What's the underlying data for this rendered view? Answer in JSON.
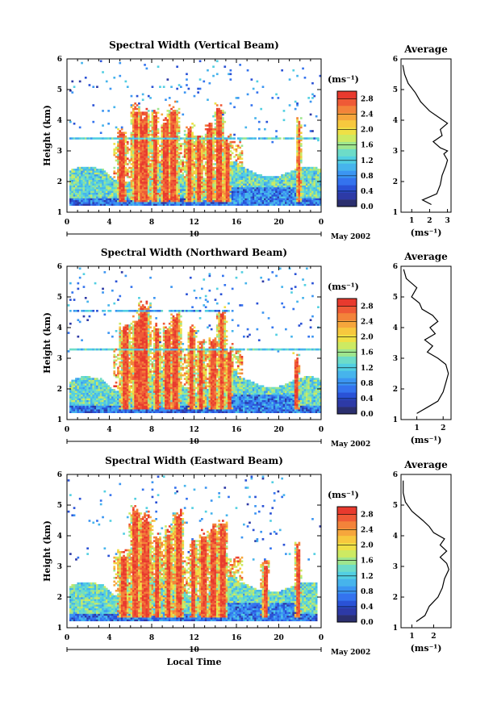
{
  "chart_data": [
    {
      "type": "heatmap",
      "title": "Spectral Width (Vertical Beam)",
      "ylabel": "Height (km)",
      "x_ticks": [
        "0",
        "4",
        "8",
        "12",
        "16",
        "20",
        "0"
      ],
      "y_ticks": [
        "1",
        "2",
        "3",
        "4",
        "5",
        "6"
      ],
      "xlim": [
        0,
        24
      ],
      "ylim": [
        1,
        6
      ],
      "date_day": "10",
      "date_label": "May 2002",
      "colorbar": {
        "unit": "(ms⁻¹)",
        "ticks": [
          "2.8",
          "2.4",
          "2.0",
          "1.6",
          "1.2",
          "0.8",
          "0.4",
          "0.0"
        ],
        "range": [
          0,
          3.0
        ]
      },
      "average": {
        "title": "Average",
        "xlabel": "(ms⁻¹)",
        "x_ticks": [
          "1",
          "2",
          "3"
        ],
        "xlim": [
          0.4,
          3.2
        ],
        "heights": [
          1.25,
          1.4,
          1.6,
          1.9,
          2.2,
          2.5,
          2.7,
          2.9,
          3.0,
          3.1,
          3.3,
          3.5,
          3.7,
          3.9,
          4.1,
          4.3,
          4.6,
          4.9,
          5.2,
          5.5,
          5.8
        ],
        "values": [
          2.1,
          1.6,
          2.4,
          2.6,
          2.7,
          2.9,
          3.0,
          2.8,
          3.0,
          2.6,
          2.2,
          2.7,
          2.6,
          3.0,
          2.5,
          2.0,
          1.5,
          1.2,
          0.8,
          0.6,
          0.5
        ]
      }
    },
    {
      "type": "heatmap",
      "title": "Spectral Width (Northward Beam)",
      "ylabel": "Height (km)",
      "x_ticks": [
        "0",
        "4",
        "8",
        "12",
        "16",
        "20",
        "0"
      ],
      "y_ticks": [
        "1",
        "2",
        "3",
        "4",
        "5",
        "6"
      ],
      "xlim": [
        0,
        24
      ],
      "ylim": [
        1,
        6
      ],
      "date_day": "10",
      "date_label": "May 2002",
      "colorbar": {
        "unit": "(ms⁻¹)",
        "ticks": [
          "2.8",
          "2.4",
          "2.0",
          "1.6",
          "1.2",
          "0.8",
          "0.4",
          "0.0"
        ],
        "range": [
          0,
          3.0
        ]
      },
      "average": {
        "title": "Average",
        "xlabel": "(ms⁻¹)",
        "x_ticks": [
          "1",
          "2"
        ],
        "xlim": [
          0.4,
          2.3
        ],
        "heights": [
          1.2,
          1.4,
          1.6,
          1.9,
          2.2,
          2.5,
          2.8,
          3.0,
          3.2,
          3.4,
          3.6,
          3.8,
          4.0,
          4.2,
          4.4,
          4.6,
          4.8,
          5.0,
          5.3,
          5.6,
          5.9
        ],
        "values": [
          1.0,
          1.4,
          1.8,
          2.0,
          2.1,
          2.2,
          2.1,
          1.8,
          1.4,
          1.6,
          1.3,
          1.7,
          1.5,
          1.8,
          1.6,
          1.2,
          1.1,
          0.8,
          1.0,
          0.6,
          0.5
        ]
      }
    },
    {
      "type": "heatmap",
      "title": "Spectral Width (Eastward Beam)",
      "ylabel": "Height (km)",
      "xlabel": "Local Time",
      "x_ticks": [
        "0",
        "4",
        "8",
        "12",
        "16",
        "20",
        "0"
      ],
      "y_ticks": [
        "1",
        "2",
        "3",
        "4",
        "5",
        "6"
      ],
      "xlim": [
        0,
        24
      ],
      "ylim": [
        1,
        6
      ],
      "date_day": "10",
      "date_label": "May 2002",
      "colorbar": {
        "unit": "(ms⁻¹)",
        "ticks": [
          "2.8",
          "2.4",
          "2.0",
          "1.6",
          "1.2",
          "0.8",
          "0.4",
          "0.0"
        ],
        "range": [
          0,
          3.0
        ]
      },
      "average": {
        "title": "Average",
        "xlabel": "(ms⁻¹)",
        "x_ticks": [
          "1",
          "2"
        ],
        "xlim": [
          0.5,
          2.8
        ],
        "heights": [
          1.2,
          1.4,
          1.7,
          2.0,
          2.3,
          2.6,
          2.9,
          3.1,
          3.3,
          3.5,
          3.7,
          3.9,
          4.1,
          4.3,
          4.5,
          4.8,
          5.1,
          5.4,
          5.8
        ],
        "values": [
          1.2,
          1.6,
          1.8,
          2.2,
          2.4,
          2.5,
          2.7,
          2.6,
          2.3,
          2.6,
          2.3,
          2.5,
          2.0,
          1.8,
          1.5,
          1.0,
          0.7,
          0.6,
          0.6
        ]
      }
    }
  ]
}
